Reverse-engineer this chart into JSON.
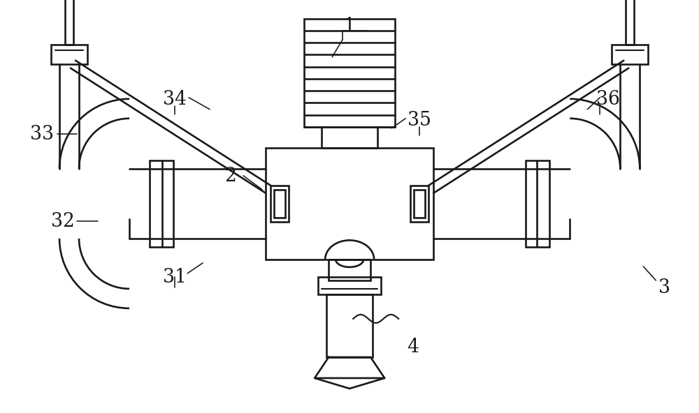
{
  "bg_color": "#ffffff",
  "line_color": "#1a1a1a",
  "line_width": 2.0,
  "fig_width": 10.42,
  "fig_height": 6.17,
  "label_fontsize": 20,
  "label_color": "#1a1a1a"
}
